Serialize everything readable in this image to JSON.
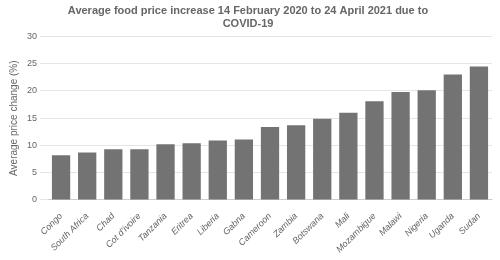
{
  "chart_data": {
    "type": "bar",
    "title": "Average food price increase 14 February 2020 to 24 April 2021 due to\nCOVID-19",
    "ylabel": "Average price change (%)",
    "categories": [
      "Congo",
      "South Africa",
      "Chad",
      "Cot d’ivoire",
      "Tanzania",
      "Eritrea",
      "Liberia",
      "Gabna",
      "Cameroon",
      "Zambia",
      "Botswana",
      "Mali",
      "Mozambigue",
      "Malawi",
      "Nigeria",
      "Uganda",
      "Sudan"
    ],
    "values": [
      8.2,
      8.7,
      9.3,
      9.3,
      10.2,
      10.4,
      10.9,
      11.1,
      13.4,
      13.7,
      14.9,
      16.0,
      18.1,
      19.8,
      20.1,
      23.0,
      24.5
    ],
    "color": "#737373",
    "ylim": [
      0,
      30
    ],
    "yticks": [
      0,
      5,
      10,
      15,
      20,
      25,
      30
    ],
    "grid": true
  }
}
